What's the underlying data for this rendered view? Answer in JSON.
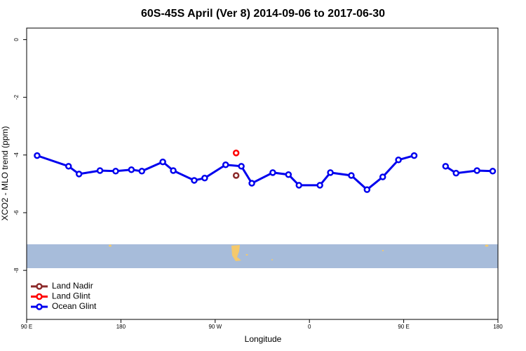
{
  "chart_data": {
    "type": "line",
    "title": "60S-45S April (Ver 8)   2014-09-06 to 2017-06-30",
    "xlabel": "Longitude",
    "ylabel": "XCO2 - MLO trend (ppm)",
    "xlim": [
      90,
      540
    ],
    "ylim": [
      -9.7,
      0.4
    ],
    "xticks": [
      {
        "value": 90,
        "label": "90 E"
      },
      {
        "value": 180,
        "label": "180"
      },
      {
        "value": 270,
        "label": "90 W"
      },
      {
        "value": 360,
        "label": "0"
      },
      {
        "value": 450,
        "label": "90 E"
      },
      {
        "value": 540,
        "label": "180"
      }
    ],
    "yticks": [
      0,
      -2,
      -4,
      -6,
      -8
    ],
    "legend": "bottom-left",
    "series": [
      {
        "name": "Land Nadir",
        "color": "#8b2a2a",
        "x": [
          290
        ],
        "values": [
          -4.71
        ]
      },
      {
        "name": "Land Glint",
        "color": "#ff0000",
        "x": [
          290
        ],
        "values": [
          -3.93
        ]
      },
      {
        "name": "Ocean Glint",
        "color": "#0000ee",
        "x": [
          100,
          130,
          140,
          160,
          175,
          190,
          200,
          220,
          230,
          250,
          260,
          280,
          295,
          305,
          325,
          340,
          350,
          370,
          380,
          400,
          415,
          430,
          445,
          460,
          475,
          490,
          500,
          520,
          535
        ],
        "values": [
          -4.02,
          -4.39,
          -4.66,
          -4.54,
          -4.56,
          -4.51,
          -4.56,
          -4.24,
          -4.54,
          -4.88,
          -4.8,
          -4.34,
          -4.39,
          -4.98,
          -4.61,
          -4.68,
          -5.05,
          -5.05,
          -4.61,
          -4.71,
          -5.2,
          -4.76,
          -4.17,
          -4.02,
          null,
          -4.39,
          -4.63,
          -4.54,
          -4.56
        ]
      }
    ]
  }
}
